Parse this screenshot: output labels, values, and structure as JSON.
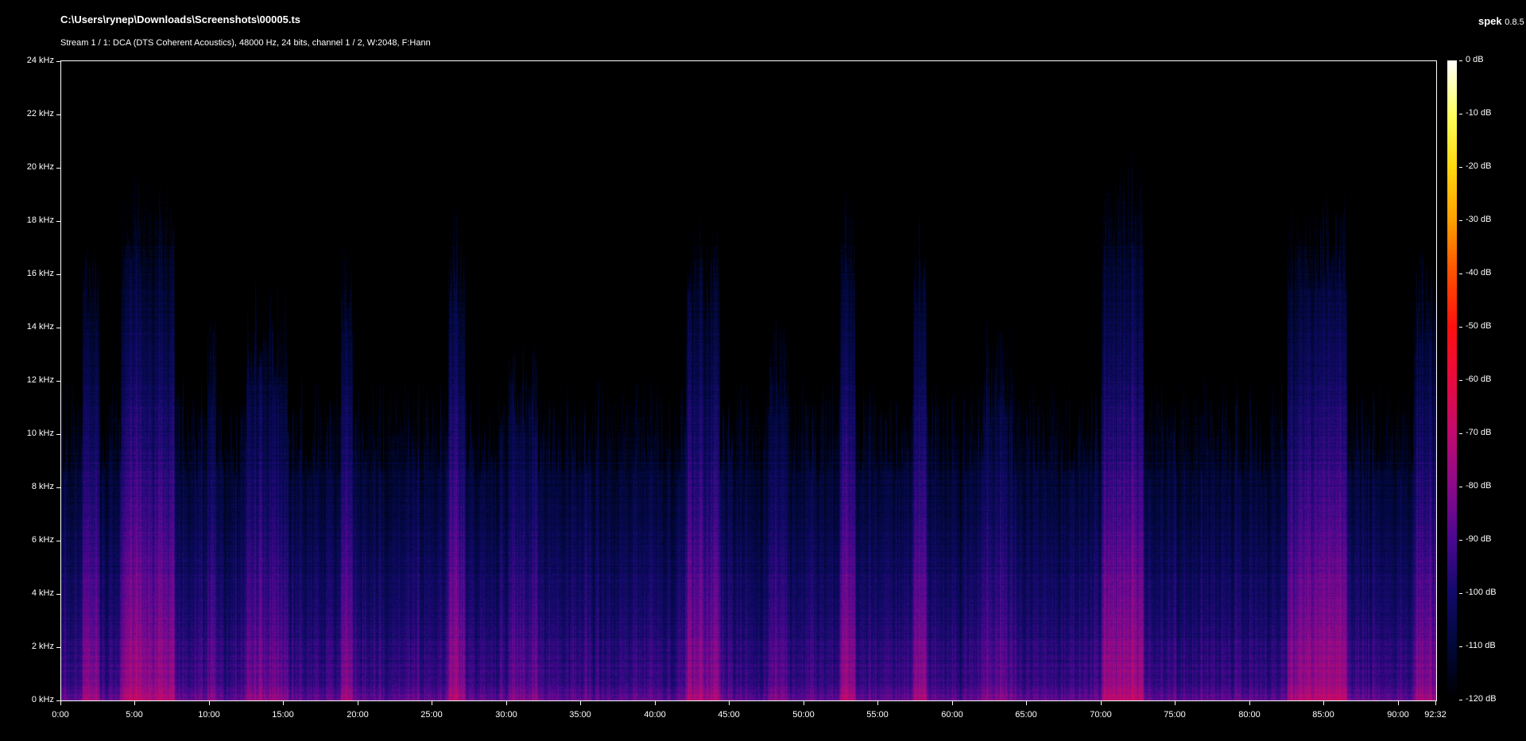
{
  "header": {
    "file_path": "C:\\Users\\rynep\\Downloads\\Screenshots\\00005.ts",
    "stream_info": "Stream 1 / 1: DCA (DTS Coherent Acoustics), 48000 Hz, 24 bits, channel 1 / 2, W:2048, F:Hann",
    "app_name": "spek",
    "app_version": "0.8.5"
  },
  "chart_data": {
    "type": "heatmap",
    "title": "C:\\Users\\rynep\\Downloads\\Screenshots\\00005.ts",
    "subtitle": "Stream 1 / 1: DCA (DTS Coherent Acoustics), 48000 Hz, 24 bits, channel 1 / 2, W:2048, F:Hann",
    "x_axis": {
      "unit": "time (mm:ss)",
      "range_seconds": [
        0,
        5552
      ],
      "tick_labels": [
        "0:00",
        "5:00",
        "10:00",
        "15:00",
        "20:00",
        "25:00",
        "30:00",
        "35:00",
        "40:00",
        "45:00",
        "50:00",
        "55:00",
        "60:00",
        "65:00",
        "70:00",
        "75:00",
        "80:00",
        "85:00",
        "90:00",
        "92:32"
      ],
      "tick_seconds": [
        0,
        300,
        600,
        900,
        1200,
        1500,
        1800,
        2100,
        2400,
        2700,
        3000,
        3300,
        3600,
        3900,
        4200,
        4500,
        4800,
        5100,
        5400,
        5552
      ]
    },
    "y_axis": {
      "unit": "kHz",
      "range": [
        0,
        24
      ],
      "tick_labels": [
        "0 kHz",
        "2 kHz",
        "4 kHz",
        "6 kHz",
        "8 kHz",
        "10 kHz",
        "12 kHz",
        "14 kHz",
        "16 kHz",
        "18 kHz",
        "20 kHz",
        "22 kHz",
        "24 kHz"
      ],
      "tick_values": [
        0,
        2,
        4,
        6,
        8,
        10,
        12,
        14,
        16,
        18,
        20,
        22,
        24
      ]
    },
    "colorbar": {
      "unit": "dB",
      "range": [
        -120,
        0
      ],
      "tick_labels": [
        "0 dB",
        "-10 dB",
        "-20 dB",
        "-30 dB",
        "-40 dB",
        "-50 dB",
        "-60 dB",
        "-70 dB",
        "-80 dB",
        "-90 dB",
        "-100 dB",
        "-110 dB",
        "-120 dB"
      ],
      "tick_values": [
        0,
        -10,
        -20,
        -30,
        -40,
        -50,
        -60,
        -70,
        -80,
        -90,
        -100,
        -110,
        -120
      ],
      "colormap": [
        {
          "db": -120,
          "color": "#000000"
        },
        {
          "db": -110,
          "color": "#000838"
        },
        {
          "db": -100,
          "color": "#120a6a"
        },
        {
          "db": -90,
          "color": "#4a0890"
        },
        {
          "db": -80,
          "color": "#8a0a8a"
        },
        {
          "db": -70,
          "color": "#c00a70"
        },
        {
          "db": -60,
          "color": "#e80a40"
        },
        {
          "db": -50,
          "color": "#ff1010"
        },
        {
          "db": -40,
          "color": "#ff5000"
        },
        {
          "db": -30,
          "color": "#ffa000"
        },
        {
          "db": -20,
          "color": "#ffd810"
        },
        {
          "db": -10,
          "color": "#ffff60"
        },
        {
          "db": 0,
          "color": "#ffffff"
        }
      ]
    },
    "grid": false
  }
}
